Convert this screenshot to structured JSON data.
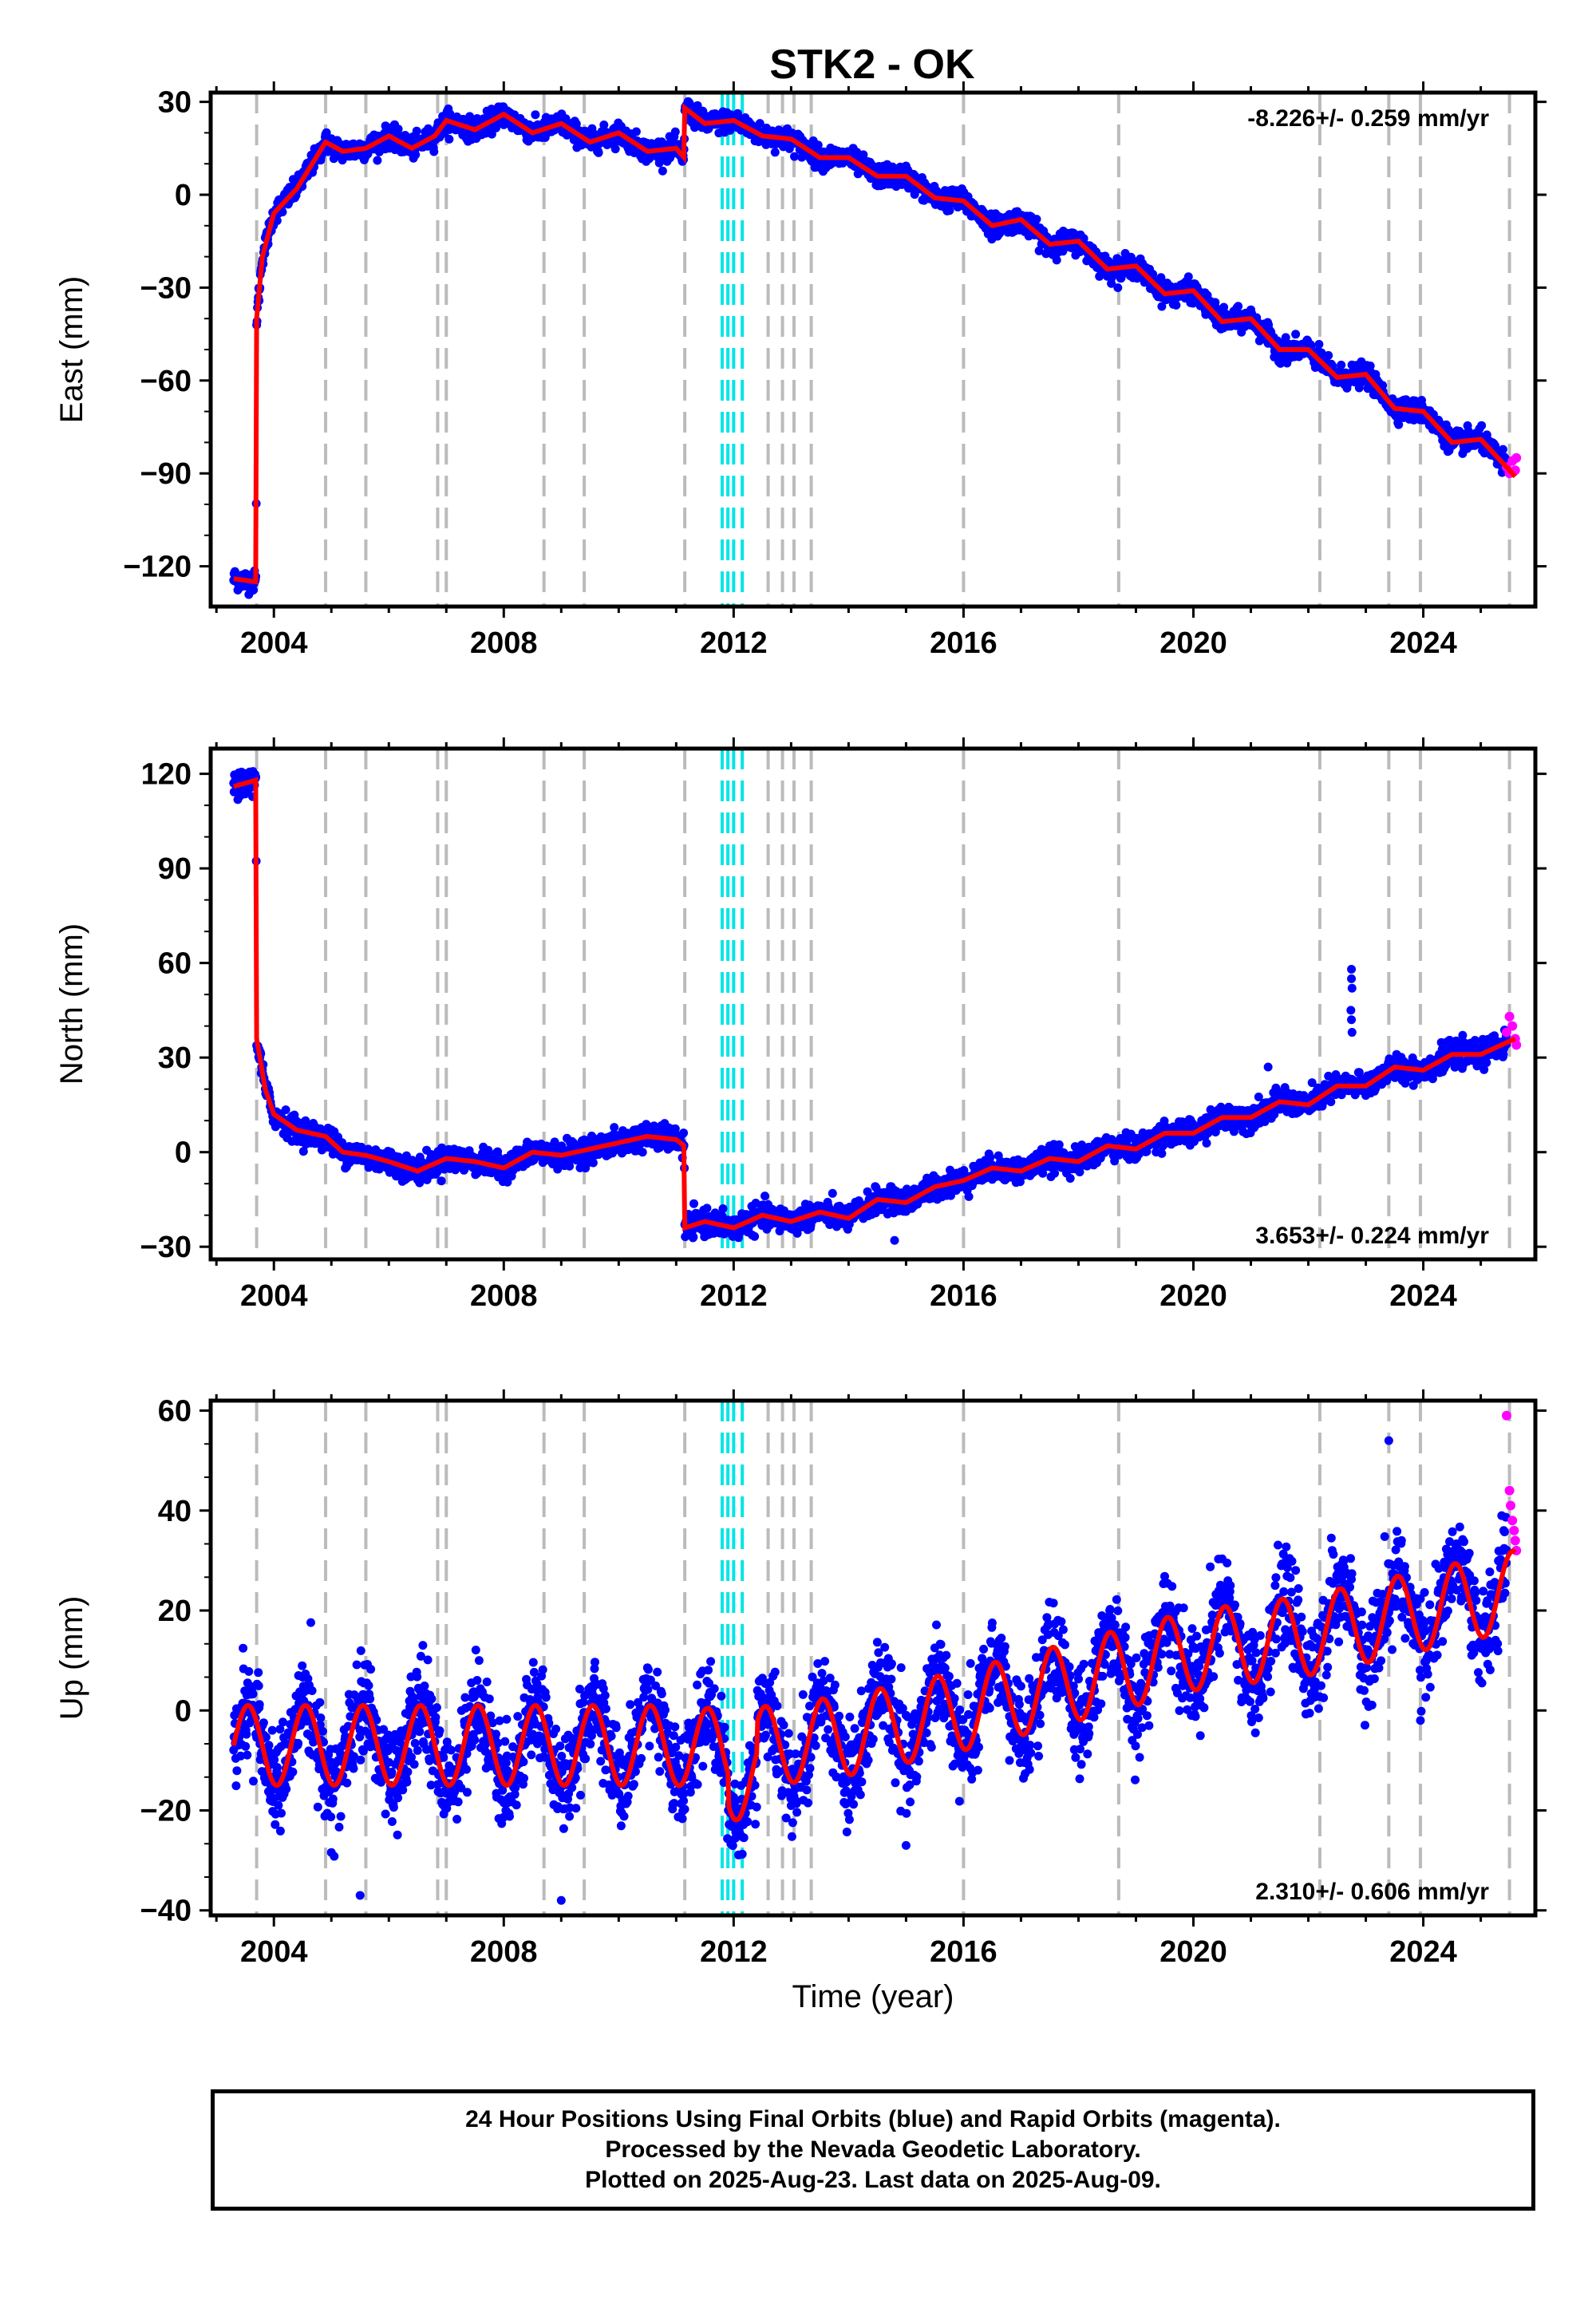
{
  "title": "STK2 - OK",
  "colors": {
    "final_orbits": "#0000ff",
    "rapid_orbits": "#ff00ff",
    "model_fit": "#ff0000",
    "equipment_change_lines": "#bbbbbb",
    "earthquake_lines": "#00e5e5",
    "frame": "#000000"
  },
  "caption": {
    "line1": "24 Hour Positions Using Final Orbits (blue) and Rapid Orbits (magenta).",
    "line2": "Processed by the Nevada Geodetic Laboratory.",
    "line3": "Plotted on 2025-Aug-23. Last data on 2025-Aug-09."
  },
  "chart_data": [
    {
      "type": "scatter",
      "component": "east",
      "ylabel": "East (mm)",
      "xlabel": "",
      "xlim": [
        2002.9,
        2025.95
      ],
      "ylim": [
        -133,
        33
      ],
      "xticks": [
        2004,
        2008,
        2012,
        2016,
        2020,
        2024
      ],
      "yticks": [
        30,
        0,
        -30,
        -60,
        -90,
        -120
      ],
      "rate_text": "-8.226+/- 0.259 mm/yr",
      "rate_position": "top-right",
      "equipment_changes": [
        2003.7,
        2004.9,
        2005.6,
        2006.85,
        2007.0,
        2008.7,
        2009.4,
        2011.15,
        2012.6,
        2012.85,
        2013.05,
        2013.35,
        2016.0,
        2018.7,
        2022.2,
        2023.4,
        2023.95,
        2025.5
      ],
      "earthquakes": [
        2011.8,
        2011.9,
        2012.0,
        2012.15
      ],
      "fit": [
        [
          2003.3,
          -124
        ],
        [
          2003.69,
          -125
        ],
        [
          2003.7,
          -40
        ],
        [
          2003.8,
          -20
        ],
        [
          2004.0,
          -6
        ],
        [
          2004.4,
          2
        ],
        [
          2004.9,
          17
        ],
        [
          2005.2,
          14
        ],
        [
          2005.6,
          15
        ],
        [
          2006.0,
          19
        ],
        [
          2006.4,
          15
        ],
        [
          2006.8,
          19
        ],
        [
          2007.0,
          24
        ],
        [
          2007.5,
          21
        ],
        [
          2008.0,
          26
        ],
        [
          2008.5,
          20
        ],
        [
          2009.0,
          23
        ],
        [
          2009.5,
          17
        ],
        [
          2010.0,
          20
        ],
        [
          2010.5,
          14
        ],
        [
          2011.0,
          15
        ],
        [
          2011.14,
          12
        ],
        [
          2011.15,
          28
        ],
        [
          2011.5,
          23
        ],
        [
          2012.0,
          24
        ],
        [
          2012.5,
          19
        ],
        [
          2013.0,
          18
        ],
        [
          2013.5,
          12
        ],
        [
          2014.0,
          12
        ],
        [
          2014.5,
          6
        ],
        [
          2015.0,
          6
        ],
        [
          2015.5,
          -1
        ],
        [
          2016.0,
          -2
        ],
        [
          2016.5,
          -10
        ],
        [
          2017.0,
          -8
        ],
        [
          2017.5,
          -16
        ],
        [
          2018.0,
          -15
        ],
        [
          2018.5,
          -24
        ],
        [
          2019.0,
          -23
        ],
        [
          2019.5,
          -32
        ],
        [
          2020.0,
          -31
        ],
        [
          2020.5,
          -41
        ],
        [
          2021.0,
          -40
        ],
        [
          2021.5,
          -50
        ],
        [
          2022.0,
          -50
        ],
        [
          2022.5,
          -59
        ],
        [
          2023.0,
          -58
        ],
        [
          2023.5,
          -69
        ],
        [
          2024.0,
          -70
        ],
        [
          2024.5,
          -80
        ],
        [
          2025.0,
          -79
        ],
        [
          2025.6,
          -91
        ]
      ],
      "rapid_points": [
        [
          2025.45,
          -88
        ],
        [
          2025.5,
          -90
        ],
        [
          2025.55,
          -86
        ],
        [
          2025.6,
          -89
        ],
        [
          2025.62,
          -85
        ]
      ],
      "noise_mm": 1.7
    },
    {
      "type": "scatter",
      "component": "north",
      "ylabel": "North (mm)",
      "xlabel": "",
      "xlim": [
        2002.9,
        2025.95
      ],
      "ylim": [
        -34,
        128
      ],
      "xticks": [
        2004,
        2008,
        2012,
        2016,
        2020,
        2024
      ],
      "yticks": [
        120,
        90,
        60,
        30,
        0,
        -30
      ],
      "rate_text": "3.653+/- 0.224 mm/yr",
      "rate_position": "bottom-right",
      "equipment_changes": [
        2003.7,
        2004.9,
        2005.6,
        2006.85,
        2007.0,
        2008.7,
        2009.4,
        2011.15,
        2012.6,
        2012.85,
        2013.05,
        2013.35,
        2016.0,
        2018.7,
        2022.2,
        2023.4,
        2023.95,
        2025.5
      ],
      "earthquakes": [
        2011.8,
        2011.9,
        2012.0,
        2012.15
      ],
      "fit": [
        [
          2003.3,
          116
        ],
        [
          2003.69,
          118
        ],
        [
          2003.7,
          36
        ],
        [
          2003.85,
          20
        ],
        [
          2004.0,
          12
        ],
        [
          2004.4,
          7
        ],
        [
          2004.9,
          5
        ],
        [
          2005.2,
          0
        ],
        [
          2005.6,
          -1
        ],
        [
          2006.0,
          -3
        ],
        [
          2006.5,
          -6
        ],
        [
          2007.0,
          -2
        ],
        [
          2007.5,
          -3
        ],
        [
          2008.0,
          -5
        ],
        [
          2008.5,
          0
        ],
        [
          2009.0,
          -1
        ],
        [
          2009.5,
          1
        ],
        [
          2010.0,
          3
        ],
        [
          2010.5,
          5
        ],
        [
          2011.0,
          4
        ],
        [
          2011.14,
          2
        ],
        [
          2011.15,
          -24
        ],
        [
          2011.5,
          -22
        ],
        [
          2012.0,
          -24
        ],
        [
          2012.5,
          -20
        ],
        [
          2013.0,
          -22
        ],
        [
          2013.5,
          -19
        ],
        [
          2014.0,
          -21
        ],
        [
          2014.5,
          -15
        ],
        [
          2015.0,
          -16
        ],
        [
          2015.5,
          -11
        ],
        [
          2016.0,
          -9
        ],
        [
          2016.5,
          -5
        ],
        [
          2017.0,
          -6
        ],
        [
          2017.5,
          -2
        ],
        [
          2018.0,
          -3
        ],
        [
          2018.5,
          2
        ],
        [
          2019.0,
          1
        ],
        [
          2019.5,
          6
        ],
        [
          2020.0,
          6
        ],
        [
          2020.5,
          11
        ],
        [
          2021.0,
          11
        ],
        [
          2021.5,
          16
        ],
        [
          2022.0,
          15
        ],
        [
          2022.5,
          21
        ],
        [
          2023.0,
          21
        ],
        [
          2023.5,
          27
        ],
        [
          2024.0,
          26
        ],
        [
          2024.5,
          31
        ],
        [
          2025.0,
          31
        ],
        [
          2025.6,
          36
        ]
      ],
      "outliers": [
        [
          2022.75,
          58
        ],
        [
          2022.75,
          55
        ],
        [
          2022.76,
          52
        ],
        [
          2022.74,
          45
        ],
        [
          2022.75,
          42
        ],
        [
          2022.76,
          38
        ],
        [
          2021.3,
          27
        ],
        [
          2014.8,
          -28
        ]
      ],
      "rapid_points": [
        [
          2025.45,
          38
        ],
        [
          2025.5,
          43
        ],
        [
          2025.55,
          40
        ],
        [
          2025.6,
          36
        ],
        [
          2025.62,
          34
        ]
      ],
      "noise_mm": 1.9
    },
    {
      "type": "scatter",
      "component": "up",
      "ylabel": "Up (mm)",
      "xlabel": "Time (year)",
      "xlim": [
        2002.9,
        2025.95
      ],
      "ylim": [
        -41,
        62
      ],
      "xticks": [
        2004,
        2008,
        2012,
        2016,
        2020,
        2024
      ],
      "yticks": [
        60,
        40,
        20,
        0,
        -20,
        -40
      ],
      "rate_text": "2.310+/- 0.606 mm/yr",
      "rate_position": "bottom-right",
      "equipment_changes": [
        2003.7,
        2004.9,
        2005.6,
        2006.85,
        2007.0,
        2008.7,
        2009.4,
        2011.15,
        2012.6,
        2012.85,
        2013.05,
        2013.35,
        2016.0,
        2018.7,
        2022.2,
        2023.4,
        2023.95,
        2025.5
      ],
      "earthquakes": [
        2011.8,
        2011.9,
        2012.0,
        2012.15
      ],
      "trend": [
        [
          2003.3,
          -7
        ],
        [
          2011.0,
          -7
        ],
        [
          2012.0,
          -8
        ],
        [
          2014.0,
          -5
        ],
        [
          2016.0,
          0
        ],
        [
          2018.0,
          6
        ],
        [
          2020.0,
          12
        ],
        [
          2022.0,
          15
        ],
        [
          2024.0,
          20
        ],
        [
          2025.6,
          24
        ]
      ],
      "seasonal_amplitude_mm": 8,
      "seasonal_peak_phase": 0.55,
      "outliers": [
        [
          2023.4,
          54
        ],
        [
          2023.95,
          -2
        ],
        [
          2015.0,
          -27
        ],
        [
          2005.5,
          -37
        ],
        [
          2009.0,
          -38
        ],
        [
          2016.8,
          -10
        ]
      ],
      "rapid_points": [
        [
          2025.45,
          59
        ],
        [
          2025.5,
          44
        ],
        [
          2025.52,
          41
        ],
        [
          2025.55,
          38
        ],
        [
          2025.58,
          36
        ],
        [
          2025.6,
          34
        ],
        [
          2025.62,
          32
        ]
      ],
      "noise_mm": 4.5
    }
  ]
}
